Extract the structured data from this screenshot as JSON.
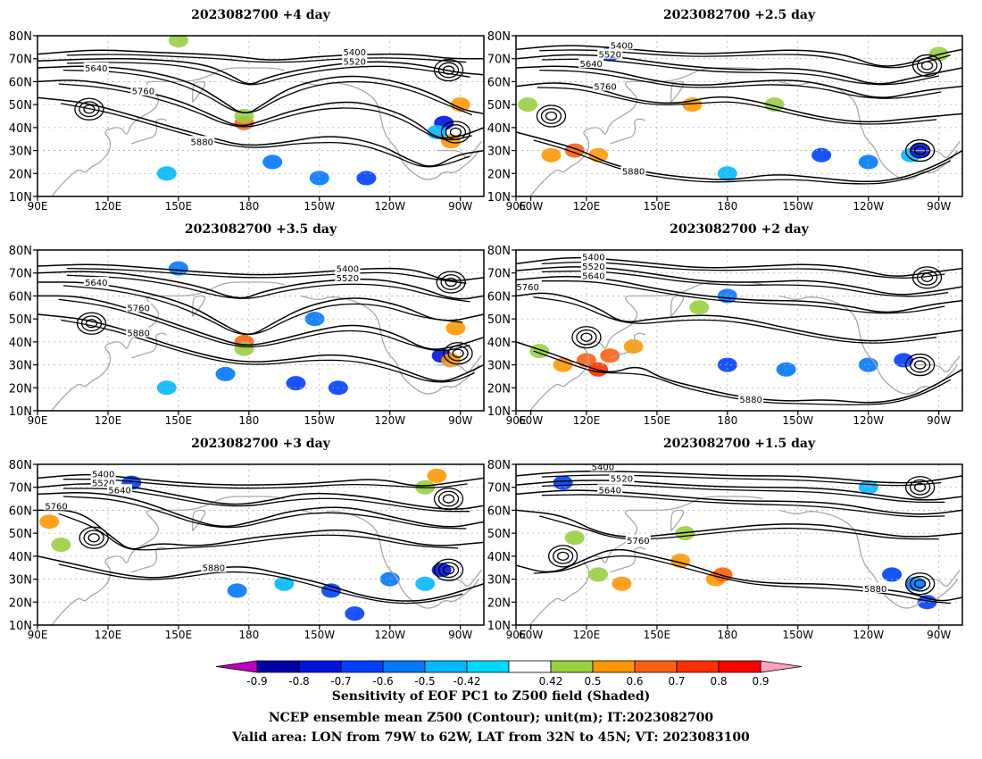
{
  "panels": [
    {
      "title": "2023082700 +4 day"
    },
    {
      "title": "2023082700 +2.5 day"
    },
    {
      "title": "2023082700 +3.5 day"
    },
    {
      "title": "2023082700 +2 day"
    },
    {
      "title": "2023082700 +3 day"
    },
    {
      "title": "2023082700 +1.5 day"
    }
  ],
  "axes": {
    "lat_labels": [
      "10N",
      "20N",
      "30N",
      "40N",
      "50N",
      "60N",
      "70N",
      "80N"
    ],
    "lon_labels": [
      "90E",
      "120E",
      "150E",
      "180",
      "150W",
      "120W",
      "90W",
      "60W"
    ]
  },
  "contour_labels": [
    "5400",
    "5520",
    "5640",
    "5760",
    "5880"
  ],
  "colorbar": {
    "levels": [
      "-0.9",
      "-0.8",
      "-0.7",
      "-0.6",
      "-0.5",
      "-0.42",
      "0.42",
      "0.5",
      "0.6",
      "0.7",
      "0.8",
      "0.9"
    ],
    "colors": [
      "#c000c0",
      "#0000a8",
      "#0014e0",
      "#0040ff",
      "#0078ff",
      "#00b8ff",
      "#00d8ff",
      "#ffffff",
      "#98d040",
      "#ff9800",
      "#ff6010",
      "#ff3000",
      "#ff0000",
      "#ffa0c0"
    ]
  },
  "caption": {
    "line1": "Sensitivity of EOF PC1 to Z500 field (Shaded)",
    "line2": "NCEP ensemble mean Z500 (Contour); unit(m); IT:2023082700",
    "line3": "Valid area: LON from 79W to 62W, LAT from 32N to 45N; VT: 2023083100"
  }
}
